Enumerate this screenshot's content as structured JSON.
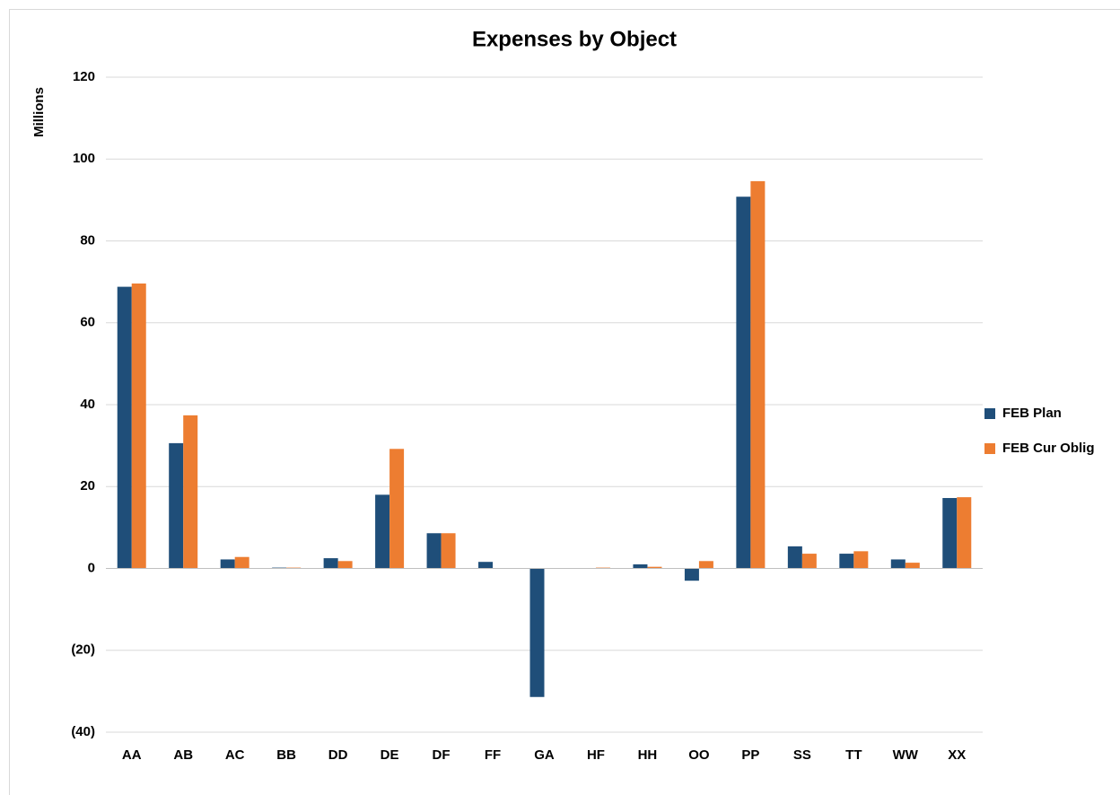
{
  "chart_data": {
    "type": "bar",
    "title": "Expenses by Object",
    "y_label": "Millions",
    "categories": [
      "AA",
      "AB",
      "AC",
      "BB",
      "DD",
      "DE",
      "DF",
      "FF",
      "GA",
      "HF",
      "HH",
      "OO",
      "PP",
      "SS",
      "TT",
      "WW",
      "XX"
    ],
    "series": [
      {
        "name": "FEB Plan",
        "color": "#1f4e79",
        "values": [
          68.8,
          30.6,
          2.2,
          0.2,
          2.5,
          18,
          8.6,
          1.6,
          -31.4,
          0,
          1.0,
          -3.0,
          90.8,
          5.4,
          3.6,
          2.2,
          17.2
        ]
      },
      {
        "name": "FEB Cur Oblig",
        "color": "#ed7d31",
        "values": [
          69.6,
          37.4,
          2.8,
          0.2,
          1.8,
          29.2,
          8.6,
          0,
          0,
          0.2,
          0.4,
          1.8,
          94.6,
          3.6,
          4.2,
          1.4,
          17.4
        ]
      }
    ],
    "ylim": [
      -40,
      120
    ],
    "yticks": [
      {
        "value": -40,
        "label": "(40)"
      },
      {
        "value": -20,
        "label": "(20)"
      },
      0,
      20,
      40,
      60,
      80,
      100,
      120
    ],
    "grid": true,
    "legend": "right"
  }
}
